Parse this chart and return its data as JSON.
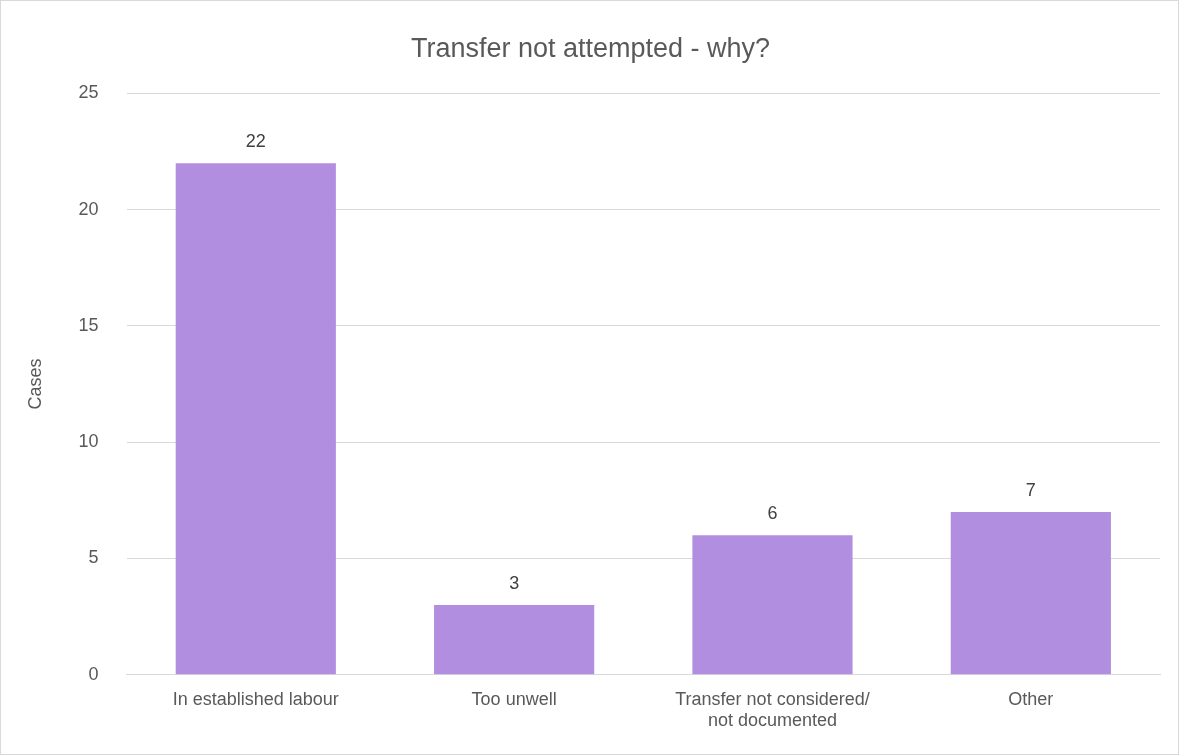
{
  "chart_data": {
    "type": "bar",
    "title": "Transfer not attempted - why?",
    "ylabel": "Cases",
    "categories": [
      "In established labour",
      "Too unwell",
      "Transfer not considered/\nnot documented",
      "Other"
    ],
    "values": [
      22,
      3,
      6,
      7
    ],
    "color": "#b28ee0",
    "ylim": [
      0,
      25
    ],
    "yticks": [
      0,
      5,
      10,
      15,
      20,
      25
    ],
    "grid": "y",
    "data_labels": true
  }
}
